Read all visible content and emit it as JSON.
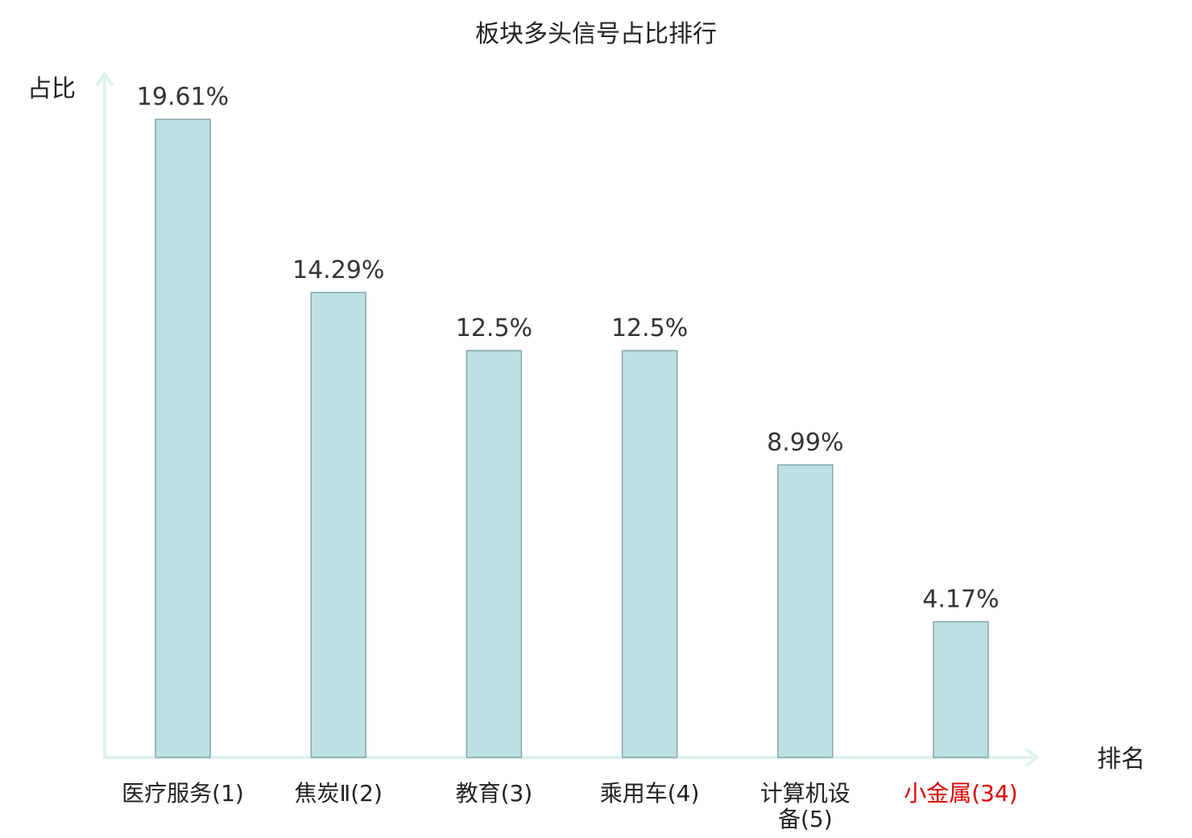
{
  "chart_data": {
    "type": "bar",
    "title": "板块多头信号占比排行",
    "ylabel": "占比",
    "xlabel": "排名",
    "categories": [
      "医疗服务(1)",
      "焦炭Ⅱ(2)",
      "教育(3)",
      "乘用车(4)",
      "计算机设备(5)",
      "小金属(34)"
    ],
    "category_lines": [
      [
        "医疗服务(1)"
      ],
      [
        "焦炭Ⅱ(2)"
      ],
      [
        "教育(3)"
      ],
      [
        "乘用车(4)"
      ],
      [
        "计算机设",
        "备(5)"
      ],
      [
        "小金属(34)"
      ]
    ],
    "values": [
      19.61,
      14.29,
      12.5,
      12.5,
      8.99,
      4.17
    ],
    "value_labels": [
      "19.61%",
      "14.29%",
      "12.5%",
      "12.5%",
      "8.99%",
      "4.17%"
    ],
    "highlight_index": 5,
    "ylim": [
      0,
      20.85
    ],
    "grid": false,
    "colors": {
      "bar_fill": "#bde0e3",
      "bar_stroke": "#87a6a8",
      "axis": "#dff2ef",
      "highlight_text": "#dd0000",
      "text": "#222222"
    }
  }
}
